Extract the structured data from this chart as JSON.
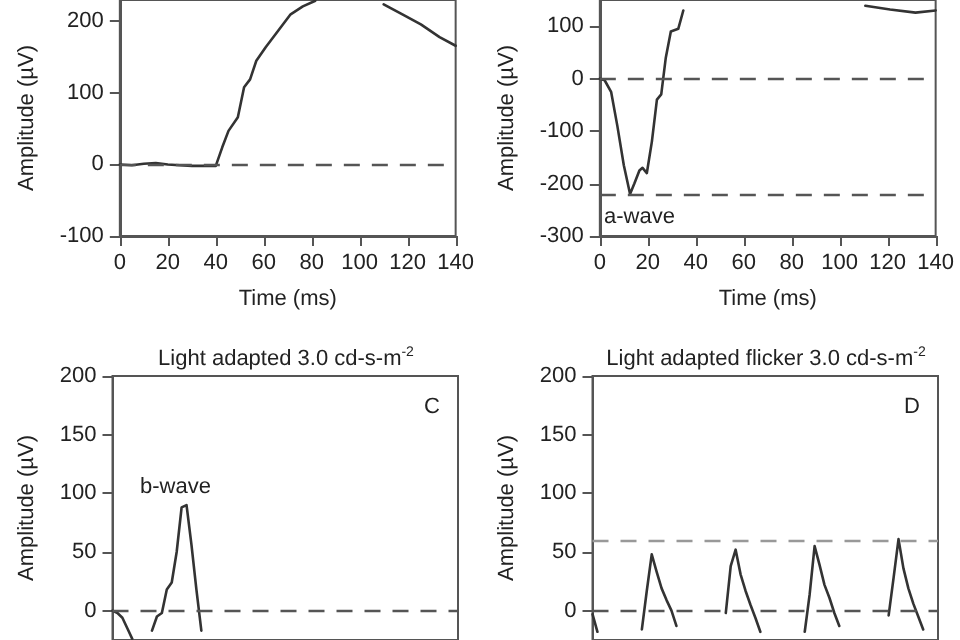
{
  "chart_data": [
    {
      "type": "line",
      "xlabel": "Time (ms)",
      "ylabel": "Amplitude (µV)",
      "xlim": [
        0,
        140
      ],
      "xticks": [
        0,
        20,
        40,
        60,
        80,
        100,
        120,
        140
      ],
      "ylim": [
        -100,
        230
      ],
      "yticks": [
        -100,
        0,
        100,
        200
      ],
      "line_style": "solid",
      "marker": "none",
      "series": [
        {
          "color": "#333333",
          "x": [
            0,
            5,
            10,
            15,
            20,
            25,
            30,
            35,
            40,
            42.7,
            45.3,
            49.2,
            51.8,
            54.3,
            56.9,
            60.8,
            66,
            71.2,
            76.3,
            81.5,
            95,
            110,
            117.8,
            125.5,
            133.3,
            140
          ],
          "values": [
            0,
            -1,
            1,
            2,
            0,
            -1,
            -2,
            -2,
            -2,
            24,
            47,
            66,
            108,
            119,
            145,
            164,
            187,
            210,
            221,
            229,
            null,
            224,
            210,
            196,
            178,
            166
          ]
        }
      ],
      "ref_lines": [
        {
          "axis": "y",
          "value": 0,
          "line_style": "dashed",
          "color": "#555555"
        }
      ]
    },
    {
      "type": "line",
      "xlabel": "Time (ms)",
      "ylabel": "Amplitude (µV)",
      "xlim": [
        0,
        140
      ],
      "xticks": [
        0,
        20,
        40,
        60,
        80,
        100,
        120,
        140
      ],
      "ylim": [
        -300,
        150
      ],
      "yticks": [
        -300,
        -200,
        -100,
        0,
        100
      ],
      "line_style": "solid",
      "marker": "none",
      "series": [
        {
          "color": "#333333",
          "x": [
            0,
            2,
            4.7,
            7.3,
            10,
            12.6,
            14.4,
            16.5,
            17.8,
            19.6,
            21.7,
            23.8,
            25.6,
            27.5,
            29.6,
            32.7,
            34.8,
            37.4,
            70,
            101.5,
            110.7,
            121,
            131.6,
            140
          ],
          "values": [
            0,
            -3,
            -25,
            -90,
            -165,
            -220,
            -200,
            -175,
            -170,
            -180,
            -120,
            -40,
            -30,
            40,
            90,
            95,
            130,
            null,
            null,
            null,
            139,
            132,
            126,
            130
          ]
        }
      ],
      "ref_lines": [
        {
          "axis": "y",
          "value": 0,
          "line_style": "dashed",
          "color": "#555555"
        },
        {
          "axis": "y",
          "value": -220,
          "line_style": "dashed",
          "color": "#555555"
        }
      ],
      "annotations": [
        "a-wave"
      ]
    },
    {
      "type": "line",
      "title": "Light adapted 3.0 cd-s-m$^{-2}$",
      "ylabel": "Amplitude (µV)",
      "categories": [
        null,
        null,
        null,
        null,
        null,
        null,
        null,
        null,
        null,
        null,
        null,
        null,
        null,
        null,
        null,
        null,
        null,
        null,
        null,
        null,
        null,
        null,
        null,
        null,
        null,
        null,
        null,
        null,
        null,
        null,
        null,
        null,
        null,
        null,
        null,
        null,
        null,
        null,
        null,
        null,
        null,
        null,
        null,
        null,
        null,
        null,
        null,
        null,
        null,
        null,
        null,
        null,
        null,
        null,
        null,
        null,
        null,
        null,
        null,
        null,
        null,
        null,
        null,
        null,
        null,
        null,
        null,
        null,
        null,
        null,
        null
      ],
      "ylim": [
        -25,
        200
      ],
      "yticks": [
        0,
        50,
        100,
        150,
        200
      ],
      "tick_labels": "y",
      "line_style": "solid",
      "marker": "none",
      "series": [
        {
          "color": "#333333",
          "values": [
            0,
            -2,
            -6,
            -15,
            -24,
            null,
            null,
            null,
            -17,
            -5,
            -2,
            18,
            24,
            50,
            88,
            90,
            56,
            18,
            -17,
            null,
            null,
            null,
            null,
            null,
            null,
            null,
            null,
            null,
            null,
            null,
            null,
            null,
            null,
            null,
            null,
            null,
            null,
            null,
            null,
            null,
            null,
            null,
            null,
            null,
            null,
            null,
            null,
            null,
            null,
            null,
            null,
            null,
            null,
            null,
            null,
            null,
            null,
            null,
            null,
            null,
            null,
            null,
            null,
            null,
            null,
            null,
            null,
            null,
            null,
            null,
            null
          ]
        }
      ],
      "ref_lines": [
        {
          "axis": "y",
          "value": 0,
          "line_style": "dashed",
          "color": "#555555"
        }
      ],
      "annotations": [
        "C",
        "b-wave"
      ]
    },
    {
      "type": "line",
      "title": "Light adapted flicker 3.0 cd-s-m$^{-2}$",
      "ylabel": "Amplitude (µV)",
      "categories": [
        null,
        null,
        null,
        null,
        null,
        null,
        null,
        null,
        null,
        null,
        null,
        null,
        null,
        null,
        null,
        null,
        null,
        null,
        null,
        null,
        null,
        null,
        null,
        null,
        null,
        null,
        null,
        null,
        null,
        null,
        null,
        null,
        null,
        null,
        null,
        null,
        null,
        null,
        null,
        null,
        null,
        null,
        null,
        null,
        null,
        null,
        null,
        null,
        null,
        null,
        null,
        null,
        null,
        null,
        null,
        null,
        null,
        null,
        null,
        null,
        null,
        null,
        null,
        null,
        null,
        null,
        null,
        null,
        null,
        null,
        null
      ],
      "ylim": [
        -25,
        200
      ],
      "yticks": [
        0,
        50,
        100,
        150,
        200
      ],
      "tick_labels": "y",
      "line_style": "solid",
      "marker": "none",
      "series": [
        {
          "color": "#333333",
          "values": [
            -3,
            -18,
            null,
            null,
            null,
            null,
            null,
            null,
            null,
            null,
            -16,
            17,
            48,
            33,
            19,
            9,
            0,
            -13,
            null,
            null,
            null,
            null,
            null,
            null,
            null,
            null,
            null,
            -2,
            38,
            52,
            31,
            17,
            5,
            -6,
            -18,
            null,
            null,
            null,
            null,
            null,
            null,
            null,
            null,
            -18,
            14,
            55,
            39,
            22,
            11,
            -2,
            -13,
            null,
            null,
            null,
            null,
            null,
            null,
            null,
            null,
            null,
            -4,
            28,
            61,
            36,
            19,
            6,
            -5,
            -16,
            null,
            null,
            null
          ]
        }
      ],
      "ref_lines": [
        {
          "axis": "y",
          "value": 0,
          "line_style": "dashed",
          "color": "#555555"
        },
        {
          "axis": "y",
          "value": 60,
          "line_style": "dashed",
          "color": "#999999"
        }
      ],
      "annotations": [
        "D"
      ]
    }
  ]
}
